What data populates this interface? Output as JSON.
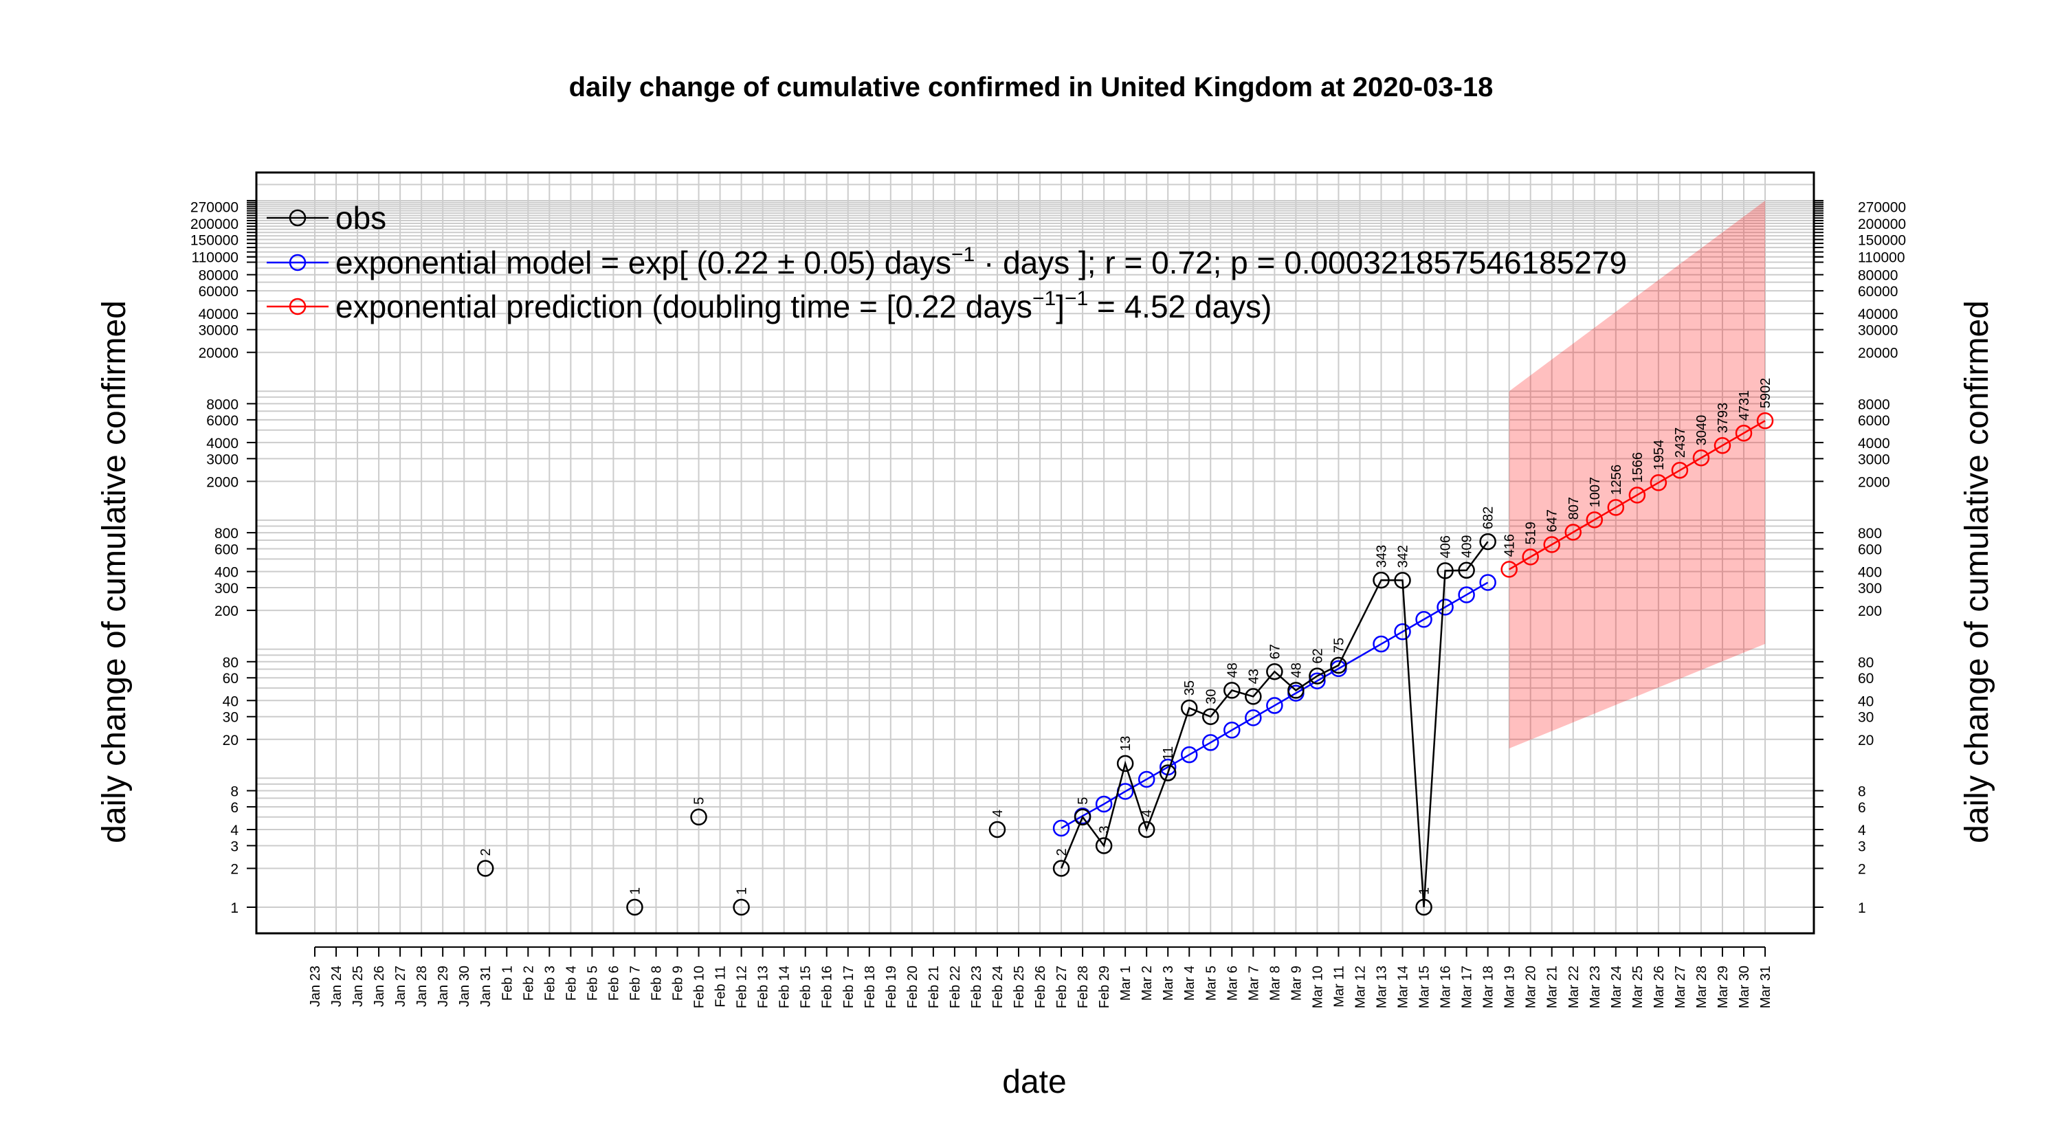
{
  "chart_data": {
    "type": "line",
    "title": "daily change of cumulative confirmed in United Kingdom at 2020-03-18",
    "xlabel": "date",
    "ylabel": "daily change of cumulative confirmed",
    "y_scale": "log",
    "ylim": [
      0.8,
      300000
    ],
    "grid": true,
    "legend_position": "top-left",
    "y_ticks": [
      1,
      2,
      3,
      4,
      6,
      8,
      20,
      30,
      40,
      60,
      80,
      200,
      300,
      400,
      600,
      800,
      2000,
      3000,
      4000,
      6000,
      8000,
      20000,
      30000,
      40000,
      60000,
      80000,
      110000,
      150000,
      200000,
      270000
    ],
    "x_tick_labels": [
      "Jan 23",
      "Jan 24",
      "Jan 25",
      "Jan 26",
      "Jan 27",
      "Jan 28",
      "Jan 29",
      "Jan 30",
      "Jan 31",
      "Feb 1",
      "Feb 2",
      "Feb 3",
      "Feb 4",
      "Feb 5",
      "Feb 6",
      "Feb 7",
      "Feb 8",
      "Feb 9",
      "Feb 10",
      "Feb 11",
      "Feb 12",
      "Feb 13",
      "Feb 14",
      "Feb 15",
      "Feb 16",
      "Feb 17",
      "Feb 18",
      "Feb 19",
      "Feb 20",
      "Feb 21",
      "Feb 22",
      "Feb 23",
      "Feb 24",
      "Feb 25",
      "Feb 26",
      "Feb 27",
      "Feb 28",
      "Feb 29",
      "Mar 1",
      "Mar 2",
      "Mar 3",
      "Mar 4",
      "Mar 5",
      "Mar 6",
      "Mar 7",
      "Mar 8",
      "Mar 9",
      "Mar 10",
      "Mar 11",
      "Mar 12",
      "Mar 13",
      "Mar 14",
      "Mar 15",
      "Mar 16",
      "Mar 17",
      "Mar 18",
      "Mar 19",
      "Mar 20",
      "Mar 21",
      "Mar 22",
      "Mar 23",
      "Mar 24",
      "Mar 25",
      "Mar 26",
      "Mar 27",
      "Mar 28",
      "Mar 29",
      "Mar 30",
      "Mar 31"
    ],
    "legend": [
      {
        "name": "obs",
        "color": "#000000"
      },
      {
        "name": "exponential model = exp[ (0.22 ± 0.05) days⁻¹ · days ]; r = 0.72; p = 0.00032185754618527​9",
        "color": "#0000ff"
      },
      {
        "name": "exponential prediction (doubling time = [0.22 days⁻¹]⁻¹ = 4.52 days)",
        "color": "#ff0000"
      }
    ],
    "series": [
      {
        "name": "obs",
        "color": "#000000",
        "isolated_points": [
          {
            "x": "Jan 31",
            "y": 2
          },
          {
            "x": "Feb 7",
            "y": 1
          },
          {
            "x": "Feb 10",
            "y": 5
          },
          {
            "x": "Feb 12",
            "y": 1
          },
          {
            "x": "Feb 24",
            "y": 4
          }
        ],
        "connected_points": [
          {
            "x": "Feb 27",
            "y": 2
          },
          {
            "x": "Feb 28",
            "y": 5
          },
          {
            "x": "Feb 29",
            "y": 3
          },
          {
            "x": "Mar 1",
            "y": 13
          },
          {
            "x": "Mar 2",
            "y": 4
          },
          {
            "x": "Mar 3",
            "y": 11
          },
          {
            "x": "Mar 4",
            "y": 35
          },
          {
            "x": "Mar 5",
            "y": 30
          },
          {
            "x": "Mar 6",
            "y": 48
          },
          {
            "x": "Mar 7",
            "y": 43
          },
          {
            "x": "Mar 8",
            "y": 67
          },
          {
            "x": "Mar 9",
            "y": 48
          },
          {
            "x": "Mar 10",
            "y": 62
          },
          {
            "x": "Mar 11",
            "y": 75
          },
          {
            "x": "Mar 13",
            "y": 343
          },
          {
            "x": "Mar 14",
            "y": 342
          },
          {
            "x": "Mar 15",
            "y": 1
          },
          {
            "x": "Mar 16",
            "y": 406
          },
          {
            "x": "Mar 17",
            "y": 409
          },
          {
            "x": "Mar 18",
            "y": 682
          }
        ]
      },
      {
        "name": "exponential model",
        "color": "#0000ff",
        "points": [
          {
            "x": "Feb 27",
            "y": 4.1
          },
          {
            "x": "Feb 28",
            "y": 5.1
          },
          {
            "x": "Feb 29",
            "y": 6.3
          },
          {
            "x": "Mar 1",
            "y": 7.9
          },
          {
            "x": "Mar 2",
            "y": 9.8
          },
          {
            "x": "Mar 3",
            "y": 12.2
          },
          {
            "x": "Mar 4",
            "y": 15.2
          },
          {
            "x": "Mar 5",
            "y": 18.9
          },
          {
            "x": "Mar 6",
            "y": 23.6
          },
          {
            "x": "Mar 7",
            "y": 29.4
          },
          {
            "x": "Mar 8",
            "y": 36.6
          },
          {
            "x": "Mar 9",
            "y": 45.6
          },
          {
            "x": "Mar 10",
            "y": 56.8
          },
          {
            "x": "Mar 11",
            "y": 70.7
          },
          {
            "x": "Mar 13",
            "y": 109.7
          },
          {
            "x": "Mar 14",
            "y": 136.6
          },
          {
            "x": "Mar 15",
            "y": 170.2
          },
          {
            "x": "Mar 16",
            "y": 212
          },
          {
            "x": "Mar 17",
            "y": 264
          },
          {
            "x": "Mar 18",
            "y": 329
          }
        ]
      },
      {
        "name": "exponential prediction",
        "color": "#ff0000",
        "points": [
          {
            "x": "Mar 19",
            "y": 416
          },
          {
            "x": "Mar 20",
            "y": 519
          },
          {
            "x": "Mar 21",
            "y": 647
          },
          {
            "x": "Mar 22",
            "y": 807
          },
          {
            "x": "Mar 23",
            "y": 1007
          },
          {
            "x": "Mar 24",
            "y": 1256
          },
          {
            "x": "Mar 25",
            "y": 1566
          },
          {
            "x": "Mar 26",
            "y": 1954
          },
          {
            "x": "Mar 27",
            "y": 2437
          },
          {
            "x": "Mar 28",
            "y": 3040
          },
          {
            "x": "Mar 29",
            "y": 3793
          },
          {
            "x": "Mar 30",
            "y": 4731
          },
          {
            "x": "Mar 31",
            "y": 5902
          }
        ],
        "band": {
          "color": "#ff0000",
          "lower": [
            {
              "x": "Mar 19",
              "y": 17
            },
            {
              "x": "Mar 31",
              "y": 110
            }
          ],
          "upper": [
            {
              "x": "Mar 19",
              "y": 10000
            },
            {
              "x": "Mar 31",
              "y": 300000
            }
          ]
        }
      }
    ]
  }
}
